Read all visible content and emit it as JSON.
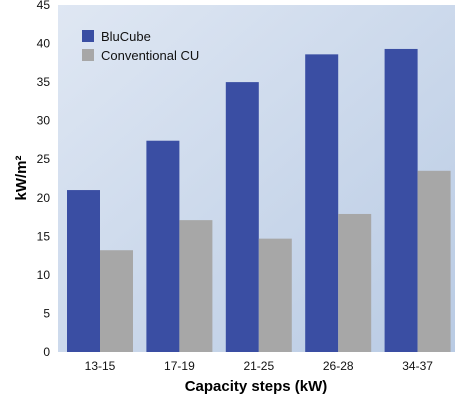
{
  "chart_data": {
    "type": "bar",
    "xlabel": "Capacity steps (kW)",
    "ylabel": "kW/m²",
    "ylim": [
      0,
      45
    ],
    "yticks": [
      "0",
      "5",
      "10",
      "15",
      "20",
      "25",
      "30",
      "35",
      "40",
      "45"
    ],
    "categories": [
      "13-15",
      "17-19",
      "21-25",
      "26-28",
      "34-37"
    ],
    "series": [
      {
        "name": "BluCube",
        "color": "#3a4ea3",
        "values": [
          21,
          27.4,
          35,
          38.6,
          39.3
        ]
      },
      {
        "name": "Conventional CU",
        "color": "#a7a7a7",
        "values": [
          13.2,
          17.1,
          14.7,
          17.9,
          23.5
        ]
      }
    ],
    "legend_position": "top-left",
    "background": "gradient light-blue",
    "grid": false
  }
}
